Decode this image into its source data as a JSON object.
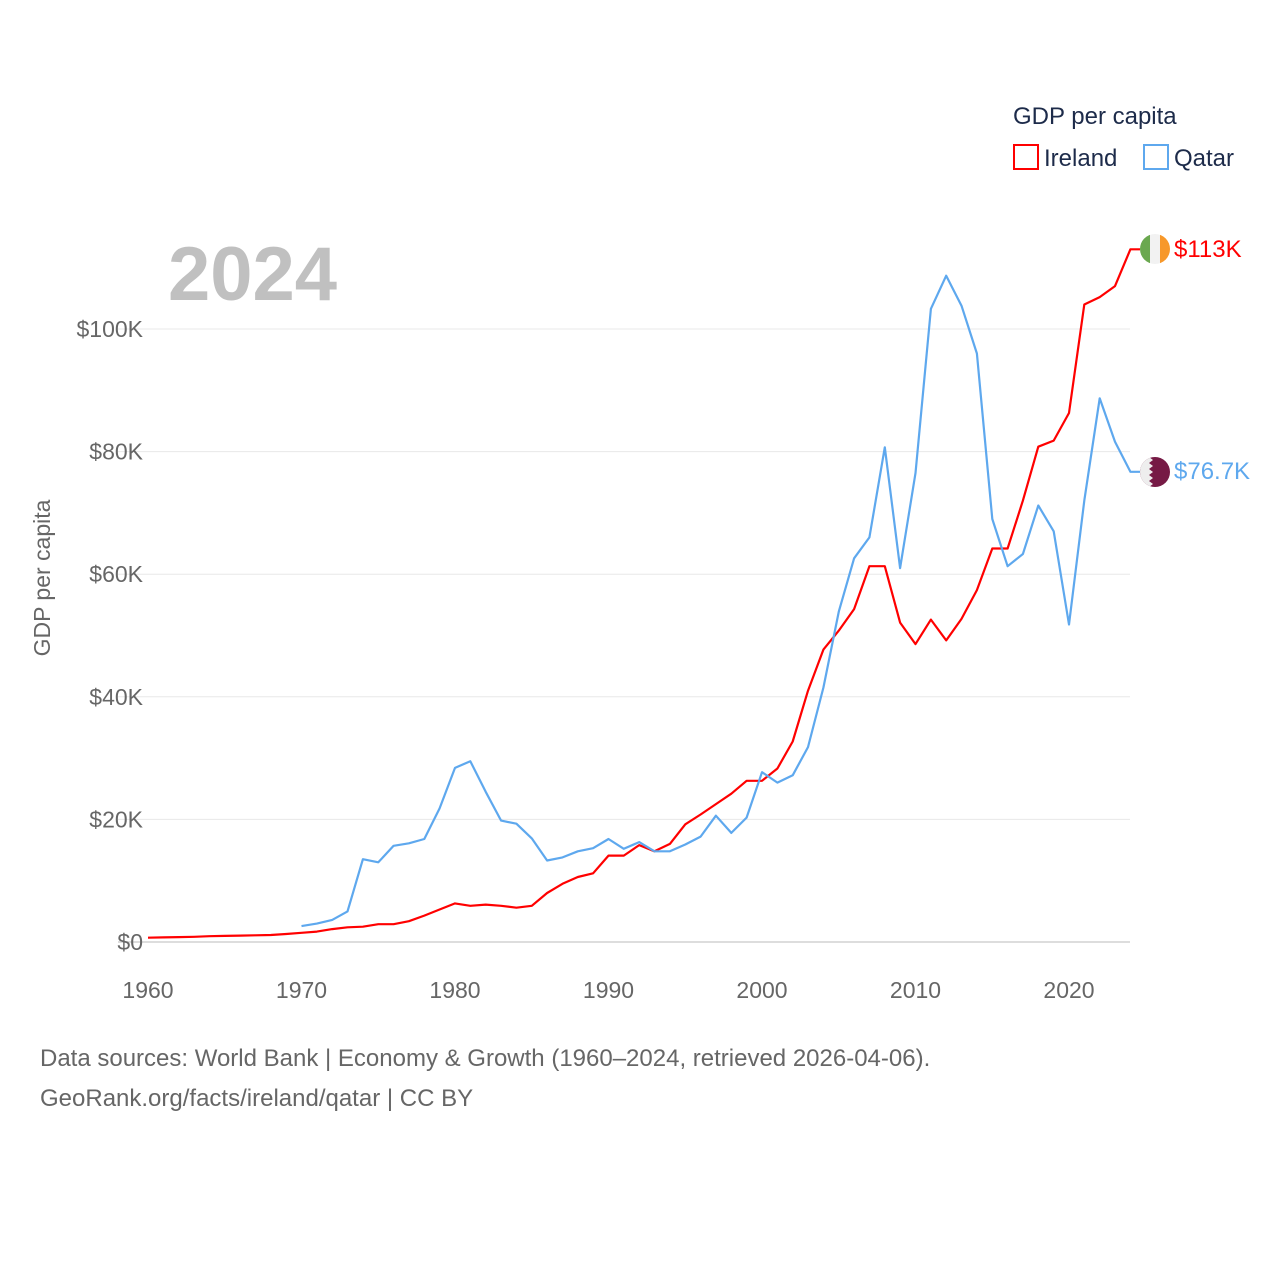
{
  "chart_data": {
    "type": "line",
    "title": "",
    "year_label": "2024",
    "xlabel": "",
    "ylabel": "GDP per capita",
    "xlim": [
      1960,
      2024
    ],
    "ylim": [
      0,
      113
    ],
    "y_unit": "thousand USD",
    "x_ticks": [
      1960,
      1970,
      1980,
      1990,
      2000,
      2010,
      2020
    ],
    "y_ticks": [
      {
        "value": 0,
        "label": "$0"
      },
      {
        "value": 20,
        "label": "$20K"
      },
      {
        "value": 40,
        "label": "$40K"
      },
      {
        "value": 60,
        "label": "$60K"
      },
      {
        "value": 80,
        "label": "$80K"
      },
      {
        "value": 100,
        "label": "$100K"
      }
    ],
    "grid": true,
    "legend": {
      "title": "GDP per capita",
      "placement": "top-right"
    },
    "series": [
      {
        "name": "Ireland",
        "color": "#ff0000",
        "end_label": "$113K",
        "flag": "ireland-flag",
        "start_year": 1960,
        "values": [
          0.7,
          0.75,
          0.8,
          0.85,
          0.95,
          1.0,
          1.05,
          1.1,
          1.15,
          1.3,
          1.5,
          1.7,
          2.1,
          2.4,
          2.5,
          2.9,
          2.9,
          3.4,
          4.3,
          5.3,
          6.3,
          5.9,
          6.1,
          5.9,
          5.6,
          5.9,
          8.0,
          9.5,
          10.6,
          11.2,
          14.1,
          14.1,
          15.8,
          14.8,
          16.0,
          19.2,
          20.8,
          22.5,
          24.2,
          26.3,
          26.3,
          28.3,
          32.7,
          41.0,
          47.7,
          50.8,
          54.3,
          61.3,
          61.3,
          52.1,
          48.6,
          52.6,
          49.2,
          52.7,
          57.4,
          64.2,
          64.2,
          72.0,
          80.8,
          81.8,
          86.3,
          104.0,
          105.2,
          107.0,
          113.0
        ]
      },
      {
        "name": "Qatar",
        "color": "#5ea8ee",
        "end_label": "$76.7K",
        "flag": "qatar-flag",
        "start_year": 1970,
        "values": [
          2.6,
          3.0,
          3.6,
          5.0,
          13.5,
          13.0,
          15.7,
          16.1,
          16.8,
          21.8,
          28.4,
          29.5,
          24.5,
          19.8,
          19.3,
          16.9,
          13.3,
          13.8,
          14.8,
          15.3,
          16.8,
          15.2,
          16.3,
          14.8,
          14.8,
          15.9,
          17.2,
          20.6,
          17.8,
          20.3,
          27.7,
          26.0,
          27.2,
          31.8,
          41.5,
          53.9,
          62.6,
          66.0,
          80.7,
          61.0,
          76.5,
          103.3,
          108.7,
          103.8,
          96.0,
          69.0,
          61.3,
          63.3,
          71.2,
          67.0,
          51.8,
          72.0,
          88.7,
          81.6,
          76.7
        ]
      }
    ]
  },
  "footer": {
    "line1": "Data sources: World Bank | Economy & Growth (1960–2024, retrieved 2026-04-06).",
    "line2": "GeoRank.org/facts/ireland/qatar | CC BY"
  }
}
